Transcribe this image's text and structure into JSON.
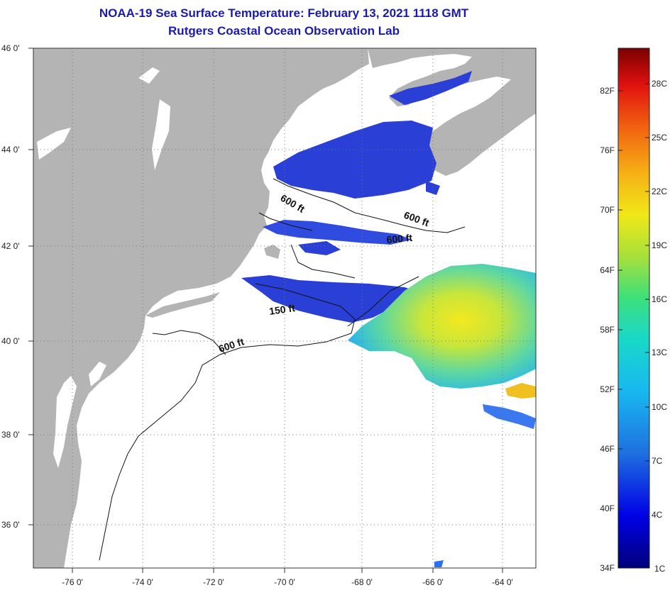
{
  "title": {
    "line1": "NOAA-19 Sea Surface Temperature:  February 13, 2021 1118 GMT",
    "line2": "Rutgers Coastal Ocean Observation Lab"
  },
  "latitude_labels": [
    "46 0'",
    "44 0'",
    "42 0'",
    "40 0'",
    "38 0'",
    "36 0'"
  ],
  "longitude_labels": [
    "-76 0'",
    "-74 0'",
    "-72 0'",
    "-70 0'",
    "-68 0'",
    "-66 0'",
    "-64 0'"
  ],
  "contour_labels": [
    "600 ft",
    "600 ft",
    "600 ft",
    "150 ft",
    "600 ft"
  ],
  "colorbar": {
    "fahrenheit": [
      "82F",
      "76F",
      "70F",
      "64F",
      "58F",
      "52F",
      "46F",
      "40F",
      "34F"
    ],
    "celsius": [
      "28C",
      "25C",
      "22C",
      "19C",
      "16C",
      "13C",
      "10C",
      "7C",
      "4C",
      "1C"
    ]
  },
  "colors": {
    "title": "#1a1ab0",
    "land": "#b4b4b4",
    "ocean": "#ffffff",
    "cold_water": "#2a3fd6"
  }
}
